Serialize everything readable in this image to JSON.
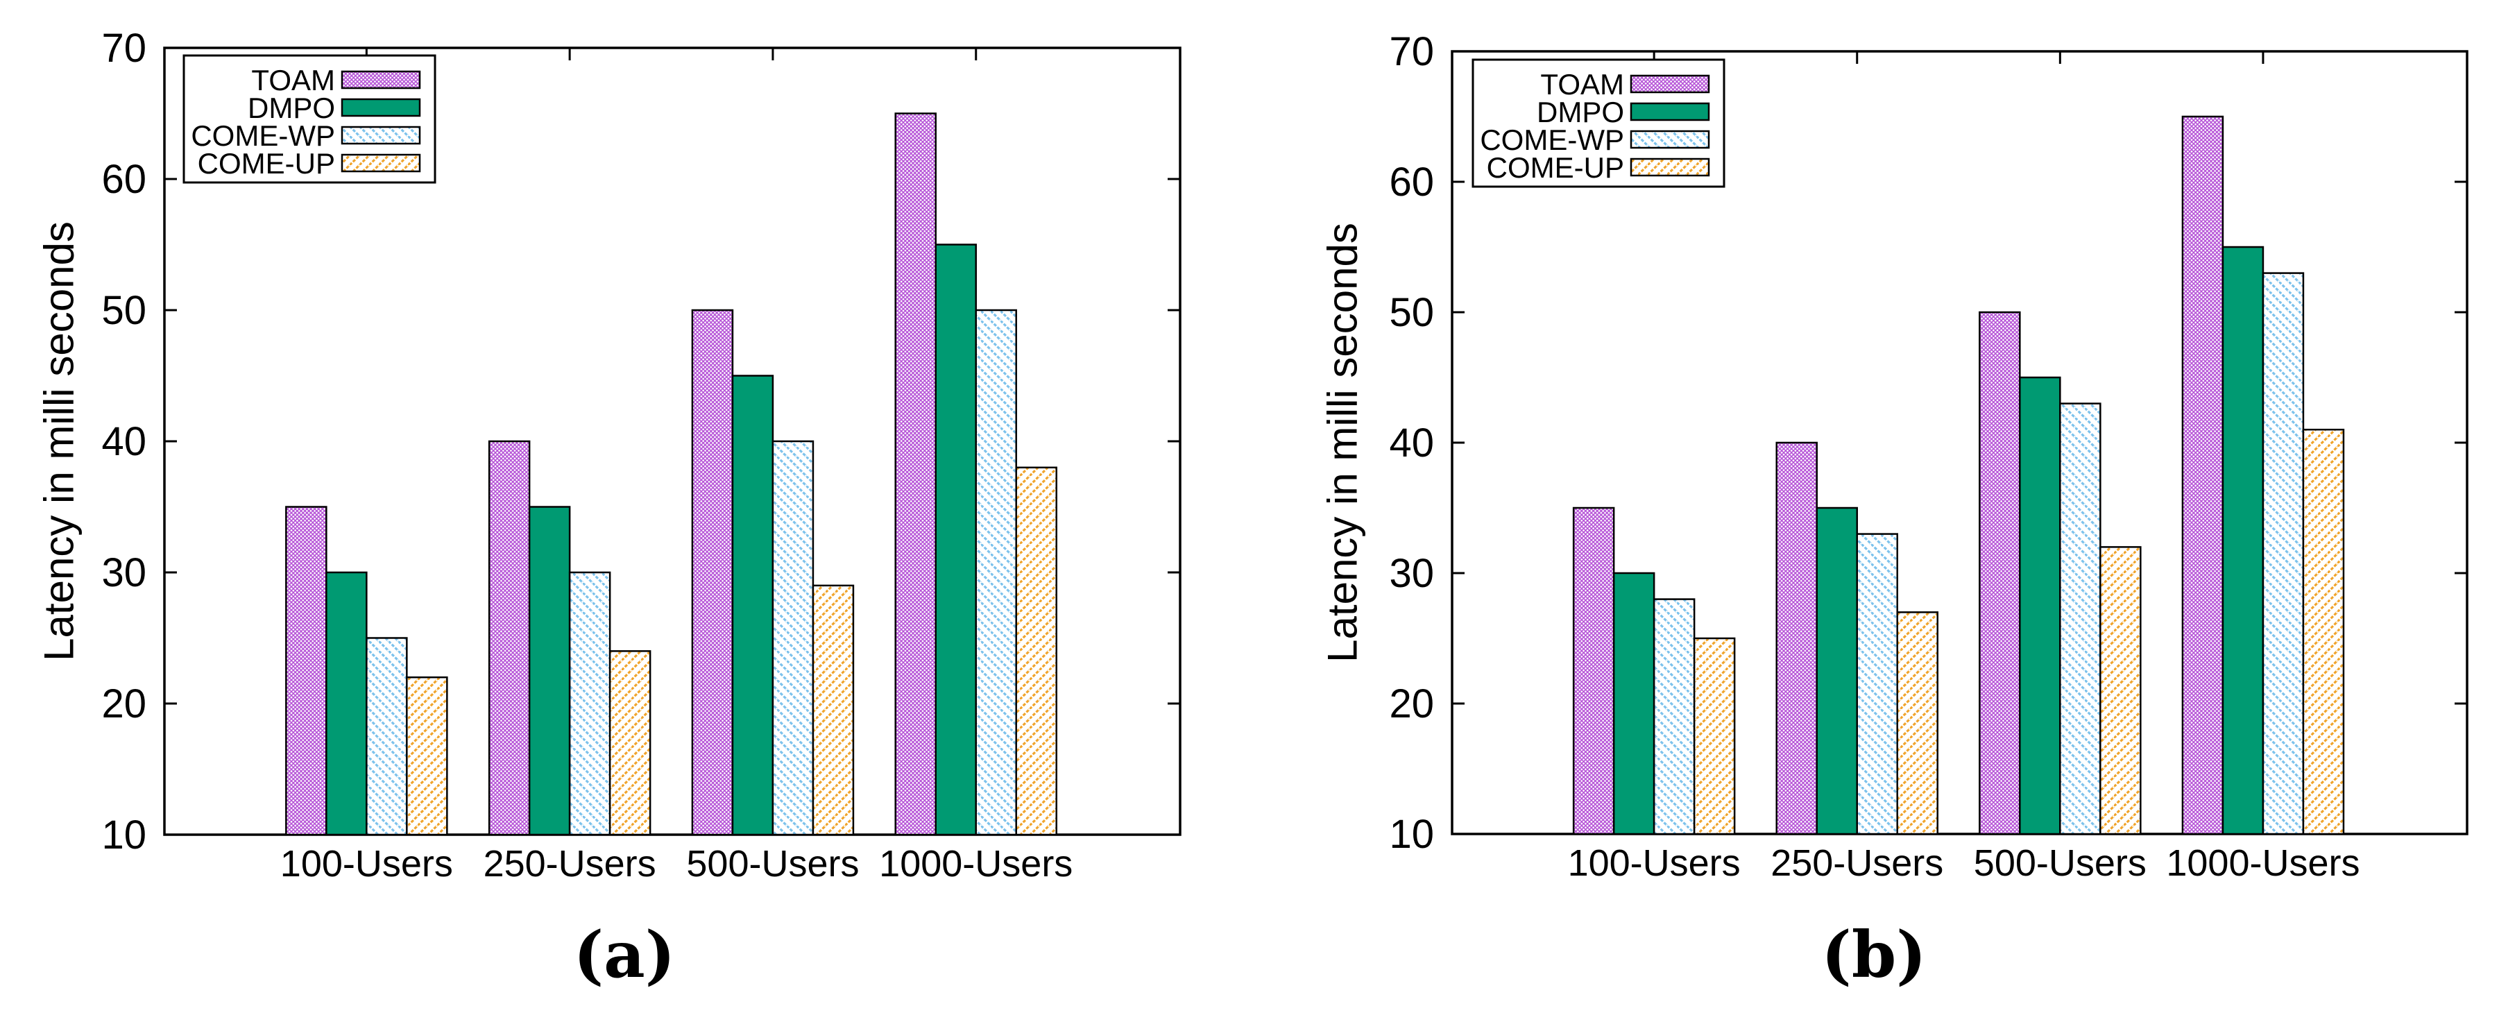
{
  "figure": {
    "captions": {
      "a": "(a)",
      "b": "(b)"
    }
  },
  "chart_data": [
    {
      "type": "bar",
      "panel": "a",
      "caption": "(a)",
      "title": "",
      "xlabel": "",
      "ylabel": "Latency in milli seconds",
      "ylim": [
        10,
        70
      ],
      "yticks": [
        10,
        20,
        30,
        40,
        50,
        60,
        70
      ],
      "grid": false,
      "legend_position": "top-left",
      "categories": [
        "100-Users",
        "250-Users",
        "500-Users",
        "1000-Users"
      ],
      "series": [
        {
          "name": "TOAM",
          "pattern": "mesh",
          "color": "#b44fd6",
          "values": [
            35,
            40,
            50,
            65
          ]
        },
        {
          "name": "DMPO",
          "pattern": "solid",
          "color": "#009a72",
          "values": [
            30,
            35,
            45,
            55
          ]
        },
        {
          "name": "COME-WP",
          "pattern": "hatch-backslash",
          "color": "#7cc2ec",
          "values": [
            25,
            30,
            40,
            50
          ]
        },
        {
          "name": "COME-UP",
          "pattern": "hatch-slash",
          "color": "#f0a42c",
          "values": [
            22,
            24,
            29,
            38
          ]
        }
      ]
    },
    {
      "type": "bar",
      "panel": "b",
      "caption": "(b)",
      "title": "",
      "xlabel": "",
      "ylabel": "Latency in milli seconds",
      "ylim": [
        10,
        70
      ],
      "yticks": [
        10,
        20,
        30,
        40,
        50,
        60,
        70
      ],
      "grid": false,
      "legend_position": "top-left",
      "categories": [
        "100-Users",
        "250-Users",
        "500-Users",
        "1000-Users"
      ],
      "series": [
        {
          "name": "TOAM",
          "pattern": "mesh",
          "color": "#b44fd6",
          "values": [
            35,
            40,
            50,
            65
          ]
        },
        {
          "name": "DMPO",
          "pattern": "solid",
          "color": "#009a72",
          "values": [
            30,
            35,
            45,
            55
          ]
        },
        {
          "name": "COME-WP",
          "pattern": "hatch-backslash",
          "color": "#7cc2ec",
          "values": [
            28,
            33,
            43,
            53
          ]
        },
        {
          "name": "COME-UP",
          "pattern": "hatch-slash",
          "color": "#f0a42c",
          "values": [
            25,
            27,
            32,
            41
          ]
        }
      ]
    }
  ]
}
